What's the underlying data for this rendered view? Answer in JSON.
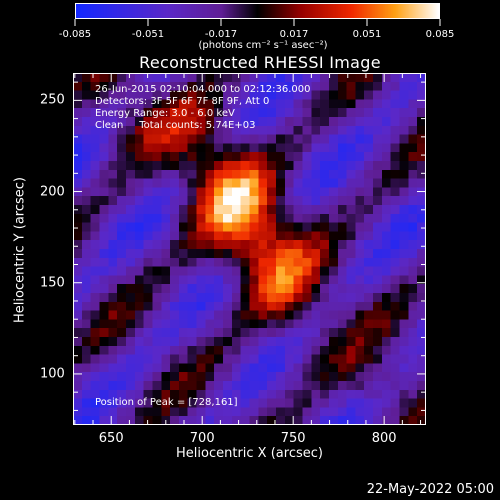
{
  "chart_data": {
    "type": "heatmap",
    "title": "Reconstructed RHESSI Image",
    "xlabel": "Heliocentric X (arcsec)",
    "ylabel": "Heliocentric Y (arcsec)",
    "xlim": [
      629,
      823
    ],
    "ylim": [
      72,
      265
    ],
    "xticks": [
      650,
      700,
      750,
      800
    ],
    "yticks": [
      100,
      150,
      200,
      250
    ],
    "colorbar": {
      "min": -0.085,
      "max": 0.085,
      "ticks": [
        "-0.085",
        "-0.051",
        "-0.017",
        "0.017",
        "0.051",
        "0.085"
      ],
      "units": "(photons cm⁻² s⁻¹ asec⁻²)"
    },
    "annotations": [
      "26-Jun-2015 02:10:04.000 to 02:12:36.000",
      "Detectors: 3F 5F 6F 7F 8F 9F, Att 0",
      "Energy Range: 3.0 - 6.0 keV",
      "Clean     Total counts: 5.74E+03"
    ],
    "peak_label": "Position of Peak = [728,161]",
    "peak_position": [
      728,
      161
    ]
  },
  "footer": {
    "date": "22-May-2022 05:00"
  },
  "colors": {
    "background": "#000000",
    "text": "#ffffff"
  }
}
